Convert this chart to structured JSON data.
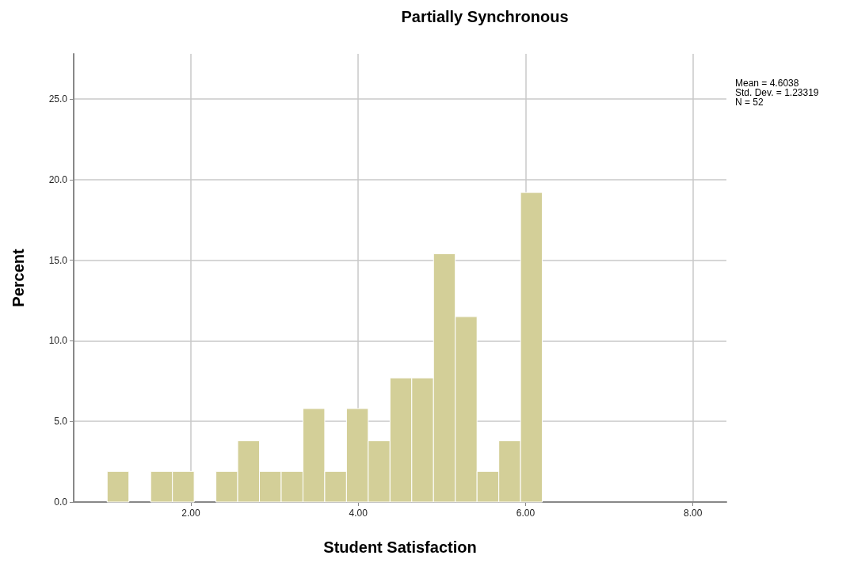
{
  "chart_data": {
    "type": "histogram",
    "title": "Partially Synchronous",
    "xlabel": "Student Satisfaction",
    "ylabel": "Percent",
    "bins": [
      1.0,
      1.26,
      1.52,
      1.78,
      2.04,
      2.3,
      2.56,
      2.82,
      3.08,
      3.34,
      3.6,
      3.86,
      4.12,
      4.38,
      4.64,
      4.9,
      5.16,
      5.42,
      5.68,
      5.94,
      6.2
    ],
    "values": [
      1.9,
      0,
      1.9,
      1.9,
      0,
      1.9,
      3.8,
      1.9,
      1.9,
      5.8,
      1.9,
      5.8,
      3.8,
      7.7,
      7.7,
      15.4,
      11.5,
      1.9,
      3.8,
      19.2
    ],
    "color": "#d3cf98",
    "xlim": [
      0.6,
      8.4
    ],
    "xticks": [
      {
        "value": 2,
        "label": "2.00"
      },
      {
        "value": 4,
        "label": "4.00"
      },
      {
        "value": 6,
        "label": "6.00"
      },
      {
        "value": 8,
        "label": "8.00"
      }
    ],
    "ylim": [
      0,
      27.8
    ],
    "yticks": [
      {
        "value": 0,
        "label": "0.0"
      },
      {
        "value": 5,
        "label": "5.0"
      },
      {
        "value": 10,
        "label": "10.0"
      },
      {
        "value": 15,
        "label": "15.0"
      },
      {
        "value": 20,
        "label": "20.0"
      },
      {
        "value": 25,
        "label": "25.0"
      }
    ],
    "grid": true,
    "annotations": [
      "Mean = 4.6038",
      "Std. Dev. = 1.23319",
      "N = 52"
    ]
  }
}
